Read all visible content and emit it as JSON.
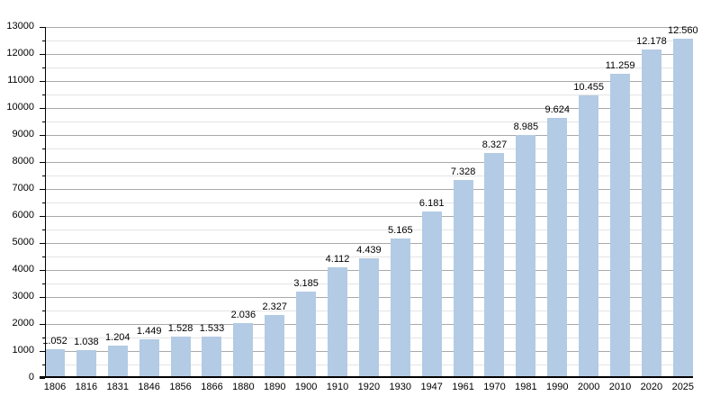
{
  "chart_data": {
    "type": "bar",
    "title": "",
    "xlabel": "",
    "ylabel": "",
    "categories": [
      "1806",
      "1816",
      "1831",
      "1846",
      "1856",
      "1866",
      "1880",
      "1890",
      "1900",
      "1910",
      "1920",
      "1930",
      "1947",
      "1961",
      "1970",
      "1981",
      "1990",
      "2000",
      "2010",
      "2020",
      "2025"
    ],
    "values": [
      1052,
      1038,
      1204,
      1449,
      1528,
      1533,
      2036,
      2327,
      3185,
      4112,
      4439,
      5165,
      6181,
      7328,
      8327,
      8985,
      9624,
      10455,
      11259,
      12178,
      12560
    ],
    "value_labels": [
      "1.052",
      "1.038",
      "1.204",
      "1.449",
      "1.528",
      "1.533",
      "2.036",
      "2.327",
      "3.185",
      "4.112",
      "4.439",
      "5.165",
      "6.181",
      "7.328",
      "8.327",
      "8.985",
      "9.624",
      "10.455",
      "11.259",
      "12.178",
      "12.560"
    ],
    "ylim": [
      0,
      13000
    ],
    "y_major_step": 1000,
    "y_minor_step": 500,
    "y_tick_labels": [
      "0",
      "1000",
      "2000",
      "3000",
      "4000",
      "5000",
      "6000",
      "7000",
      "8000",
      "9000",
      "10000",
      "11000",
      "12000",
      "13000"
    ],
    "grid": "horizontal major and minor gridlines",
    "legend_position": "none",
    "colors": {
      "bar": "#b3cbe4",
      "major_grid": "#a9a9a9",
      "minor_grid": "#e4e4e4",
      "axis": "#000000",
      "text": "#000000",
      "background": "#ffffff"
    }
  }
}
